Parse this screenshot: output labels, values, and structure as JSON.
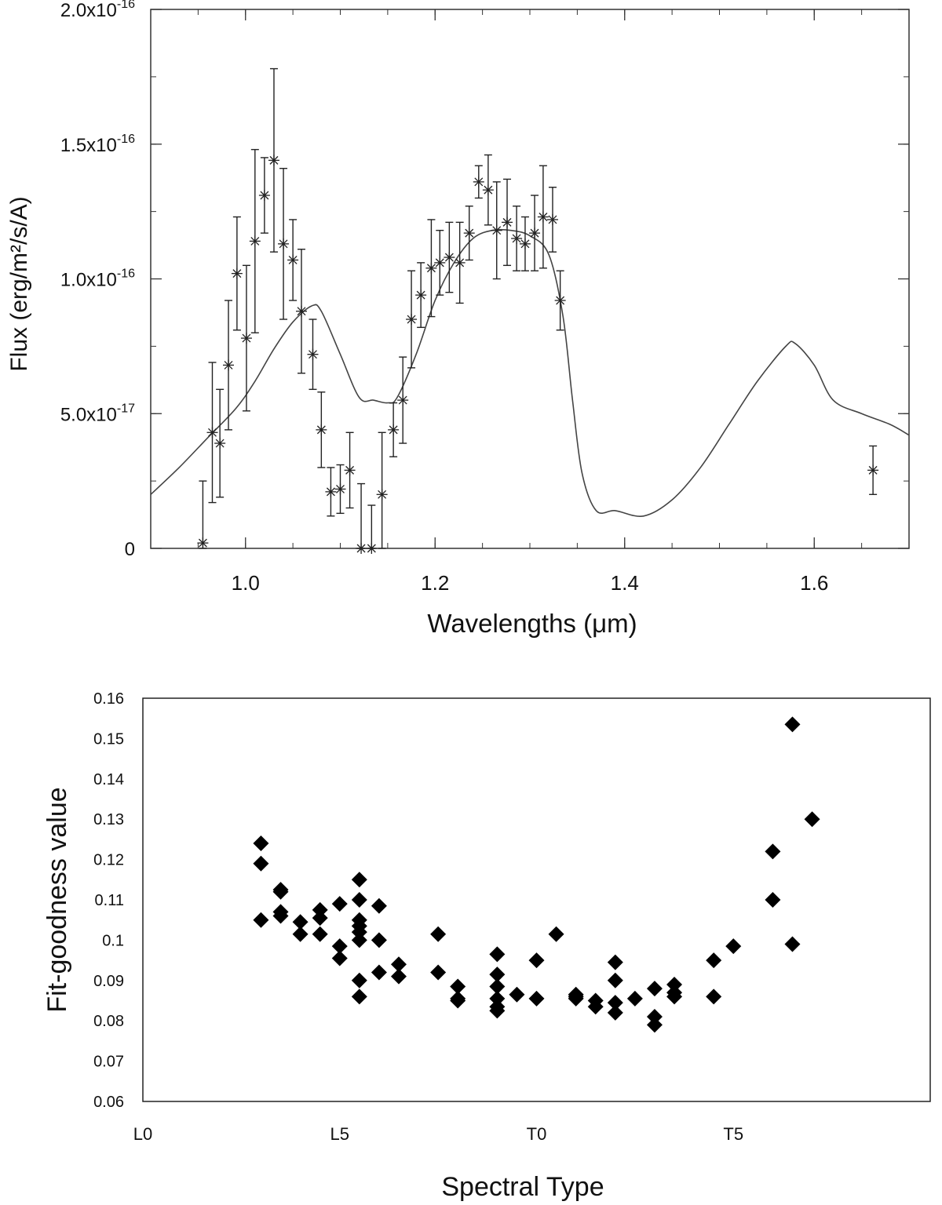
{
  "chart_data": [
    {
      "type": "scatter",
      "xlabel": "Wavelengths (μm)",
      "ylabel": "Flux (erg/m²/s/A)",
      "xlim": [
        0.9,
        1.7
      ],
      "ylim": [
        0,
        2e-16
      ],
      "x_ticks": [
        {
          "value": 1.0,
          "label": "1.0"
        },
        {
          "value": 1.2,
          "label": "1.2"
        },
        {
          "value": 1.4,
          "label": "1.4"
        },
        {
          "value": 1.6,
          "label": "1.6"
        }
      ],
      "y_ticks": [
        {
          "value": 0,
          "mant": "0",
          "exp": ""
        },
        {
          "value": 5e-17,
          "mant": "5.0x10",
          "exp": "-17"
        },
        {
          "value": 1e-16,
          "mant": "1.0x10",
          "exp": "-16"
        },
        {
          "value": 1.5e-16,
          "mant": "1.5x10",
          "exp": "-16"
        },
        {
          "value": 2e-16,
          "mant": "2.0x10",
          "exp": "-16"
        }
      ],
      "grid": false,
      "series": [
        {
          "kind": "points_with_error_bars",
          "marker": "asterisk",
          "points": [
            {
              "x": 0.955,
              "y": 2e-18,
              "err": 2.3e-17
            },
            {
              "x": 0.965,
              "y": 4.3e-17,
              "err": 2.6e-17
            },
            {
              "x": 0.973,
              "y": 3.9e-17,
              "err": 2e-17
            },
            {
              "x": 0.982,
              "y": 6.8e-17,
              "err": 2.4e-17
            },
            {
              "x": 0.991,
              "y": 1.02e-16,
              "err": 2.1e-17
            },
            {
              "x": 1.001,
              "y": 7.8e-17,
              "err": 2.7e-17
            },
            {
              "x": 1.01,
              "y": 1.14e-16,
              "err": 3.4e-17
            },
            {
              "x": 1.02,
              "y": 1.31e-16,
              "err": 1.4e-17
            },
            {
              "x": 1.03,
              "y": 1.44e-16,
              "err": 3.4e-17
            },
            {
              "x": 1.04,
              "y": 1.13e-16,
              "err": 2.8e-17
            },
            {
              "x": 1.05,
              "y": 1.07e-16,
              "err": 1.5e-17
            },
            {
              "x": 1.059,
              "y": 8.8e-17,
              "err": 2.3e-17
            },
            {
              "x": 1.071,
              "y": 7.2e-17,
              "err": 1.3e-17
            },
            {
              "x": 1.08,
              "y": 4.4e-17,
              "err": 1.4e-17
            },
            {
              "x": 1.09,
              "y": 2.1e-17,
              "err": 9e-18
            },
            {
              "x": 1.1,
              "y": 2.2e-17,
              "err": 9e-18
            },
            {
              "x": 1.11,
              "y": 2.9e-17,
              "err": 1.4e-17
            },
            {
              "x": 1.122,
              "y": 0.0,
              "err": 2.4e-17
            },
            {
              "x": 1.133,
              "y": 0.0,
              "err": 1.6e-17
            },
            {
              "x": 1.144,
              "y": 2e-17,
              "err": 2.3e-17
            },
            {
              "x": 1.156,
              "y": 4.4e-17,
              "err": 1e-17
            },
            {
              "x": 1.166,
              "y": 5.5e-17,
              "err": 1.6e-17
            },
            {
              "x": 1.175,
              "y": 8.5e-17,
              "err": 1.8e-17
            },
            {
              "x": 1.185,
              "y": 9.4e-17,
              "err": 1.2e-17
            },
            {
              "x": 1.196,
              "y": 1.04e-16,
              "err": 1.8e-17
            },
            {
              "x": 1.205,
              "y": 1.06e-16,
              "err": 1.2e-17
            },
            {
              "x": 1.215,
              "y": 1.08e-16,
              "err": 1.3e-17
            },
            {
              "x": 1.226,
              "y": 1.06e-16,
              "err": 1.5e-17
            },
            {
              "x": 1.236,
              "y": 1.17e-16,
              "err": 1e-17
            },
            {
              "x": 1.246,
              "y": 1.36e-16,
              "err": 6e-18
            },
            {
              "x": 1.256,
              "y": 1.33e-16,
              "err": 1.3e-17
            },
            {
              "x": 1.265,
              "y": 1.18e-16,
              "err": 1.8e-17
            },
            {
              "x": 1.276,
              "y": 1.21e-16,
              "err": 1.6e-17
            },
            {
              "x": 1.286,
              "y": 1.15e-16,
              "err": 1.2e-17
            },
            {
              "x": 1.295,
              "y": 1.13e-16,
              "err": 1e-17
            },
            {
              "x": 1.305,
              "y": 1.17e-16,
              "err": 1.4e-17
            },
            {
              "x": 1.314,
              "y": 1.23e-16,
              "err": 1.9e-17
            },
            {
              "x": 1.324,
              "y": 1.22e-16,
              "err": 1.2e-17
            },
            {
              "x": 1.332,
              "y": 9.2e-17,
              "err": 1.1e-17
            },
            {
              "x": 1.662,
              "y": 2.9e-17,
              "err": 9e-18
            }
          ]
        },
        {
          "kind": "line",
          "x": [
            0.9,
            0.93,
            0.96,
            0.99,
            1.01,
            1.03,
            1.05,
            1.07,
            1.08,
            1.1,
            1.12,
            1.135,
            1.15,
            1.16,
            1.18,
            1.2,
            1.22,
            1.24,
            1.26,
            1.28,
            1.3,
            1.32,
            1.335,
            1.345,
            1.355,
            1.37,
            1.39,
            1.42,
            1.45,
            1.48,
            1.51,
            1.54,
            1.57,
            1.58,
            1.6,
            1.62,
            1.65,
            1.68,
            1.7
          ],
          "y": [
            2e-17,
            3e-17,
            4.1e-17,
            5.2e-17,
            6.2e-17,
            7.4e-17,
            8.4e-17,
            9e-17,
            8.8e-17,
            7.2e-17,
            5.6e-17,
            5.5e-17,
            5.4e-17,
            5.6e-17,
            7.2e-17,
            9.2e-17,
            1.06e-16,
            1.15e-16,
            1.18e-16,
            1.18e-16,
            1.16e-16,
            1.09e-16,
            8.6e-17,
            5.5e-17,
            2.8e-17,
            1.4e-17,
            1.4e-17,
            1.2e-17,
            1.8e-17,
            3e-17,
            4.6e-17,
            6.2e-17,
            7.5e-17,
            7.6e-17,
            6.8e-17,
            5.5e-17,
            5e-17,
            4.6e-17,
            4.2e-17
          ]
        }
      ]
    },
    {
      "type": "scatter",
      "xlabel": "Spectral Type",
      "ylabel": "Fit-goodness value",
      "xlim": [
        0,
        20
      ],
      "ylim": [
        0.06,
        0.16
      ],
      "x_ticks": [
        {
          "value": 0,
          "label": "L0"
        },
        {
          "value": 5,
          "label": "L5"
        },
        {
          "value": 10,
          "label": "T0"
        },
        {
          "value": 15,
          "label": "T5"
        }
      ],
      "y_ticks": [
        {
          "value": 0.06,
          "label": "0.06"
        },
        {
          "value": 0.07,
          "label": "0.07"
        },
        {
          "value": 0.08,
          "label": "0.08"
        },
        {
          "value": 0.09,
          "label": "0.09"
        },
        {
          "value": 0.1,
          "label": "0.1"
        },
        {
          "value": 0.11,
          "label": "0.11"
        },
        {
          "value": 0.12,
          "label": "0.12"
        },
        {
          "value": 0.13,
          "label": "0.13"
        },
        {
          "value": 0.14,
          "label": "0.14"
        },
        {
          "value": 0.15,
          "label": "0.15"
        },
        {
          "value": 0.16,
          "label": "0.16"
        }
      ],
      "grid": false,
      "marker": "diamond",
      "points": [
        {
          "x": 3.0,
          "y": 0.124
        },
        {
          "x": 3.0,
          "y": 0.119
        },
        {
          "x": 3.0,
          "y": 0.105
        },
        {
          "x": 3.5,
          "y": 0.1125
        },
        {
          "x": 3.5,
          "y": 0.112
        },
        {
          "x": 3.5,
          "y": 0.107
        },
        {
          "x": 3.5,
          "y": 0.106
        },
        {
          "x": 4.0,
          "y": 0.1045
        },
        {
          "x": 4.0,
          "y": 0.1015
        },
        {
          "x": 4.5,
          "y": 0.1075
        },
        {
          "x": 4.5,
          "y": 0.1055
        },
        {
          "x": 4.5,
          "y": 0.1015
        },
        {
          "x": 5.0,
          "y": 0.109
        },
        {
          "x": 5.0,
          "y": 0.0985
        },
        {
          "x": 5.0,
          "y": 0.0955
        },
        {
          "x": 5.5,
          "y": 0.115
        },
        {
          "x": 5.5,
          "y": 0.11
        },
        {
          "x": 5.5,
          "y": 0.105
        },
        {
          "x": 5.5,
          "y": 0.1035
        },
        {
          "x": 5.5,
          "y": 0.102
        },
        {
          "x": 5.5,
          "y": 0.1
        },
        {
          "x": 5.5,
          "y": 0.09
        },
        {
          "x": 5.5,
          "y": 0.086
        },
        {
          "x": 6.0,
          "y": 0.1085
        },
        {
          "x": 6.0,
          "y": 0.1
        },
        {
          "x": 6.0,
          "y": 0.092
        },
        {
          "x": 6.5,
          "y": 0.094
        },
        {
          "x": 6.5,
          "y": 0.091
        },
        {
          "x": 7.5,
          "y": 0.1015
        },
        {
          "x": 7.5,
          "y": 0.092
        },
        {
          "x": 8.0,
          "y": 0.0885
        },
        {
          "x": 8.0,
          "y": 0.0855
        },
        {
          "x": 8.0,
          "y": 0.085
        },
        {
          "x": 9.0,
          "y": 0.0965
        },
        {
          "x": 9.0,
          "y": 0.0915
        },
        {
          "x": 9.0,
          "y": 0.0885
        },
        {
          "x": 9.0,
          "y": 0.0855
        },
        {
          "x": 9.0,
          "y": 0.0835
        },
        {
          "x": 9.0,
          "y": 0.0825
        },
        {
          "x": 9.5,
          "y": 0.0865
        },
        {
          "x": 10.0,
          "y": 0.095
        },
        {
          "x": 10.0,
          "y": 0.0855
        },
        {
          "x": 10.5,
          "y": 0.1015
        },
        {
          "x": 11.0,
          "y": 0.0865
        },
        {
          "x": 11.0,
          "y": 0.086
        },
        {
          "x": 11.0,
          "y": 0.0855
        },
        {
          "x": 11.5,
          "y": 0.085
        },
        {
          "x": 11.5,
          "y": 0.0835
        },
        {
          "x": 12.0,
          "y": 0.0945
        },
        {
          "x": 12.0,
          "y": 0.09
        },
        {
          "x": 12.0,
          "y": 0.0845
        },
        {
          "x": 12.0,
          "y": 0.082
        },
        {
          "x": 12.5,
          "y": 0.0855
        },
        {
          "x": 13.0,
          "y": 0.088
        },
        {
          "x": 13.0,
          "y": 0.081
        },
        {
          "x": 13.0,
          "y": 0.079
        },
        {
          "x": 13.5,
          "y": 0.089
        },
        {
          "x": 13.5,
          "y": 0.087
        },
        {
          "x": 13.5,
          "y": 0.086
        },
        {
          "x": 14.5,
          "y": 0.095
        },
        {
          "x": 14.5,
          "y": 0.086
        },
        {
          "x": 15.0,
          "y": 0.0985
        },
        {
          "x": 16.0,
          "y": 0.122
        },
        {
          "x": 16.0,
          "y": 0.11
        },
        {
          "x": 16.5,
          "y": 0.1535
        },
        {
          "x": 16.5,
          "y": 0.099
        },
        {
          "x": 17.0,
          "y": 0.13
        }
      ]
    }
  ]
}
